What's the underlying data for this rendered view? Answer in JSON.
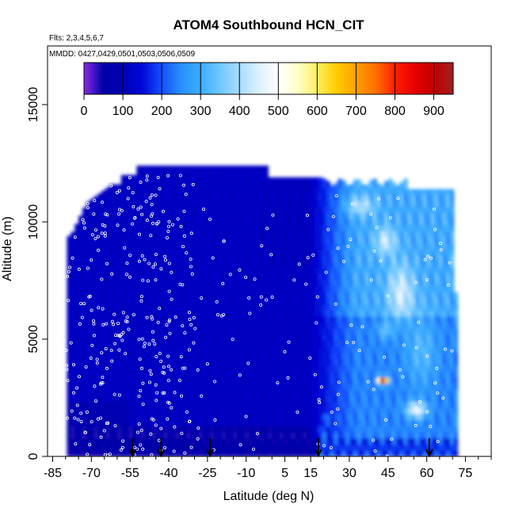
{
  "chart_data": {
    "type": "heatmap",
    "title": "ATOM4 Southbound HCN_CIT",
    "subtitle_flights": "Flts: 2,3,4,5,6,7",
    "subtitle_dates": "MMDD: 0427,0429,0501,0503,0506,0509",
    "xlabel": "Latitude (deg N)",
    "ylabel": "Altitude (m)",
    "xlim": [
      -87,
      85
    ],
    "ylim": [
      0,
      17500
    ],
    "x_ticks": [
      -85,
      -70,
      -55,
      -40,
      -25,
      -10,
      5,
      15,
      30,
      45,
      60,
      75
    ],
    "x_tick_labels": [
      "-85",
      "-70",
      "-55",
      "-40",
      "-25",
      "-10",
      "5",
      "15",
      "30",
      "45",
      "60",
      "75"
    ],
    "x_minor_ticks": [
      -80,
      -75,
      -65,
      -60,
      -50,
      -45,
      -35,
      -30,
      -20,
      -15,
      -5,
      0,
      10,
      20,
      25,
      35,
      40,
      50,
      55,
      65,
      70,
      80,
      85
    ],
    "y_ticks": [
      0,
      5000,
      10000,
      15000
    ],
    "y_tick_labels": [
      "0",
      "5000",
      "10000",
      "15000"
    ],
    "colorbar": {
      "min": 0,
      "max": 950,
      "ticks": [
        0,
        100,
        200,
        300,
        400,
        500,
        600,
        700,
        800,
        900
      ],
      "tick_labels": [
        "0",
        "100",
        "200",
        "300",
        "400",
        "500",
        "600",
        "700",
        "800",
        "900"
      ],
      "stops": [
        {
          "v": 0,
          "c": "#8a2be2"
        },
        {
          "v": 50,
          "c": "#0000a8"
        },
        {
          "v": 100,
          "c": "#0000b4"
        },
        {
          "v": 150,
          "c": "#0008d8"
        },
        {
          "v": 200,
          "c": "#1450ff"
        },
        {
          "v": 250,
          "c": "#2890ff"
        },
        {
          "v": 300,
          "c": "#3cacff"
        },
        {
          "v": 350,
          "c": "#70c8ff"
        },
        {
          "v": 400,
          "c": "#a8dcff"
        },
        {
          "v": 450,
          "c": "#dcf0ff"
        },
        {
          "v": 500,
          "c": "#ffffff"
        },
        {
          "v": 550,
          "c": "#ffffc8"
        },
        {
          "v": 600,
          "c": "#ffef60"
        },
        {
          "v": 650,
          "c": "#ffcc00"
        },
        {
          "v": 700,
          "c": "#ffa000"
        },
        {
          "v": 750,
          "c": "#ff7000"
        },
        {
          "v": 800,
          "c": "#ff2000"
        },
        {
          "v": 850,
          "c": "#e80000"
        },
        {
          "v": 900,
          "c": "#c00000"
        },
        {
          "v": 950,
          "c": "#a02020"
        }
      ]
    },
    "profile_markers_lat": [
      -54,
      -43,
      -24,
      18,
      61
    ],
    "colors": {
      "background": "#ffffff",
      "axis": "#000000",
      "sample_points": "#ffffff"
    }
  }
}
